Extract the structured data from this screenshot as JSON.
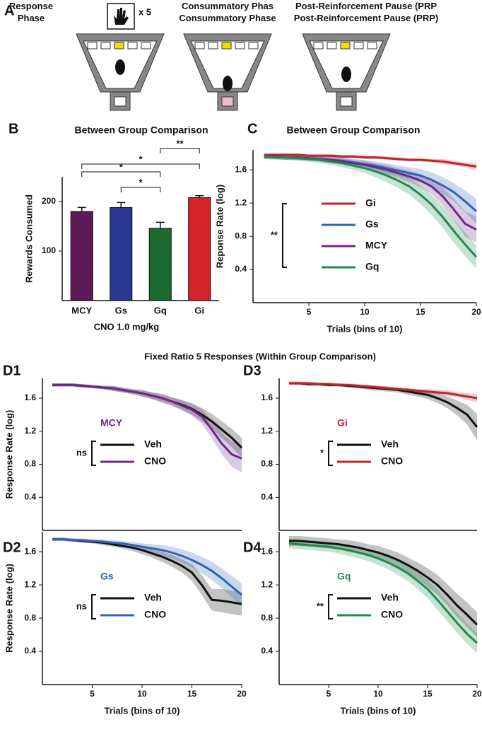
{
  "figure": {
    "panel_label": "A",
    "phases": [
      "Response Phase",
      "Consummatory Phase",
      "Post-Reinforcement Pause (PRP)"
    ],
    "response_count": "x 5",
    "section_title": "Fixed Ratio 5 Responses (Within Group Comparison)"
  },
  "chart_data": [
    {
      "type": "bar",
      "panel": "B",
      "title": "Between Group Comparison",
      "ylabel": "Rewards Consumed",
      "xlabel": "CNO 1.0 mg/kg",
      "categories": [
        "MCY",
        "Gs",
        "Gq",
        "Gi"
      ],
      "values": [
        180,
        188,
        146,
        208
      ],
      "errors": [
        8,
        10,
        12,
        4
      ],
      "colors": [
        "#5c1a5a",
        "#2a3590",
        "#1b6b30",
        "#d4242a"
      ],
      "ylim": [
        0,
        250
      ],
      "yticks": [
        100,
        200
      ],
      "significance": [
        {
          "label": "**",
          "between": [
            "Gq",
            "Gi"
          ]
        },
        {
          "label": "*",
          "between": [
            "MCY",
            "Gi"
          ]
        },
        {
          "label": "*",
          "between": [
            "MCY",
            "Gq"
          ]
        },
        {
          "label": "*",
          "between": [
            "Gs",
            "Gq"
          ]
        }
      ]
    },
    {
      "type": "line",
      "panel": "C",
      "title": "Between Group Comparison",
      "ylabel": "Reponse Rate (log)",
      "xlabel": "Trials (bins of 10)",
      "significance": "**",
      "x": [
        1,
        2,
        3,
        4,
        5,
        6,
        7,
        8,
        9,
        10,
        11,
        12,
        13,
        14,
        15,
        16,
        17,
        18,
        19,
        20
      ],
      "xlim": [
        0,
        20
      ],
      "xticks": [
        5,
        10,
        15,
        20
      ],
      "ylim": [
        0,
        1.84
      ],
      "yticks": [
        0.4,
        0.8,
        1.2,
        1.6
      ],
      "series": [
        {
          "name": "Gi",
          "color": "#c0242a",
          "values": [
            1.78,
            1.78,
            1.78,
            1.78,
            1.77,
            1.77,
            1.77,
            1.76,
            1.76,
            1.75,
            1.75,
            1.74,
            1.73,
            1.72,
            1.72,
            1.71,
            1.7,
            1.68,
            1.66,
            1.64
          ],
          "error": [
            0.02,
            0.02,
            0.02,
            0.02,
            0.02,
            0.02,
            0.02,
            0.02,
            0.02,
            0.02,
            0.02,
            0.02,
            0.02,
            0.02,
            0.02,
            0.02,
            0.03,
            0.03,
            0.03,
            0.04
          ]
        },
        {
          "name": "Gs",
          "color": "#2f64b4",
          "values": [
            1.76,
            1.76,
            1.75,
            1.75,
            1.74,
            1.73,
            1.72,
            1.71,
            1.69,
            1.67,
            1.65,
            1.62,
            1.59,
            1.56,
            1.53,
            1.48,
            1.41,
            1.33,
            1.22,
            1.1
          ],
          "error": [
            0.03,
            0.03,
            0.03,
            0.03,
            0.03,
            0.03,
            0.04,
            0.04,
            0.04,
            0.05,
            0.05,
            0.06,
            0.06,
            0.07,
            0.08,
            0.09,
            0.1,
            0.11,
            0.13,
            0.15
          ]
        },
        {
          "name": "MCY",
          "color": "#6a2a8a",
          "values": [
            1.76,
            1.76,
            1.75,
            1.75,
            1.74,
            1.73,
            1.72,
            1.7,
            1.68,
            1.66,
            1.63,
            1.6,
            1.56,
            1.52,
            1.47,
            1.4,
            1.28,
            1.12,
            0.95,
            0.88
          ],
          "error": [
            0.03,
            0.03,
            0.03,
            0.03,
            0.03,
            0.03,
            0.04,
            0.04,
            0.04,
            0.05,
            0.05,
            0.06,
            0.06,
            0.07,
            0.08,
            0.09,
            0.11,
            0.13,
            0.15,
            0.16
          ]
        },
        {
          "name": "Gq",
          "color": "#1f8a4c",
          "values": [
            1.76,
            1.75,
            1.75,
            1.74,
            1.73,
            1.72,
            1.7,
            1.68,
            1.65,
            1.62,
            1.58,
            1.53,
            1.47,
            1.4,
            1.3,
            1.18,
            1.03,
            0.86,
            0.7,
            0.55
          ],
          "error": [
            0.03,
            0.03,
            0.03,
            0.03,
            0.03,
            0.04,
            0.04,
            0.05,
            0.05,
            0.06,
            0.07,
            0.08,
            0.09,
            0.1,
            0.11,
            0.12,
            0.13,
            0.14,
            0.14,
            0.14
          ]
        }
      ]
    },
    {
      "type": "line",
      "panel": "D1",
      "ylabel": "Response Rate (log)",
      "legend_title": "MCY",
      "legend_color": "#6a2a8a",
      "significance": "ns",
      "x": [
        1,
        2,
        3,
        4,
        5,
        6,
        7,
        8,
        9,
        10,
        11,
        12,
        13,
        14,
        15,
        16,
        17,
        18,
        19,
        20
      ],
      "xlim": [
        0,
        20
      ],
      "ylim": [
        0,
        1.84
      ],
      "yticks": [
        0.4,
        0.8,
        1.2,
        1.6
      ],
      "series": [
        {
          "name": "Veh",
          "color": "#111111",
          "values": [
            1.76,
            1.76,
            1.76,
            1.75,
            1.74,
            1.73,
            1.72,
            1.7,
            1.68,
            1.66,
            1.63,
            1.6,
            1.56,
            1.52,
            1.47,
            1.4,
            1.32,
            1.22,
            1.12,
            1.0
          ],
          "error": [
            0.02,
            0.02,
            0.02,
            0.02,
            0.02,
            0.02,
            0.03,
            0.03,
            0.03,
            0.04,
            0.04,
            0.05,
            0.05,
            0.06,
            0.07,
            0.08,
            0.09,
            0.1,
            0.11,
            0.12
          ]
        },
        {
          "name": "CNO",
          "color": "#6a2a8a",
          "values": [
            1.76,
            1.76,
            1.76,
            1.75,
            1.74,
            1.73,
            1.72,
            1.7,
            1.68,
            1.66,
            1.63,
            1.6,
            1.56,
            1.51,
            1.46,
            1.38,
            1.22,
            1.05,
            0.92,
            0.87
          ],
          "error": [
            0.02,
            0.02,
            0.02,
            0.02,
            0.02,
            0.02,
            0.03,
            0.03,
            0.03,
            0.04,
            0.04,
            0.05,
            0.05,
            0.06,
            0.07,
            0.09,
            0.11,
            0.13,
            0.15,
            0.17
          ]
        }
      ]
    },
    {
      "type": "line",
      "panel": "D3",
      "legend_title": "Gi",
      "legend_color": "#c0242a",
      "significance": "*",
      "x": [
        1,
        2,
        3,
        4,
        5,
        6,
        7,
        8,
        9,
        10,
        11,
        12,
        13,
        14,
        15,
        16,
        17,
        18,
        19,
        20
      ],
      "xlim": [
        0,
        20
      ],
      "ylim": [
        0,
        1.84
      ],
      "yticks": [
        0.4,
        0.8,
        1.2,
        1.6
      ],
      "series": [
        {
          "name": "Veh",
          "color": "#111111",
          "values": [
            1.78,
            1.78,
            1.77,
            1.77,
            1.76,
            1.76,
            1.75,
            1.74,
            1.73,
            1.72,
            1.71,
            1.7,
            1.68,
            1.66,
            1.64,
            1.6,
            1.55,
            1.48,
            1.4,
            1.25
          ],
          "error": [
            0.02,
            0.02,
            0.02,
            0.02,
            0.02,
            0.02,
            0.02,
            0.02,
            0.03,
            0.03,
            0.03,
            0.03,
            0.04,
            0.04,
            0.05,
            0.06,
            0.07,
            0.09,
            0.12,
            0.16
          ]
        },
        {
          "name": "CNO",
          "color": "#c0242a",
          "values": [
            1.78,
            1.78,
            1.78,
            1.77,
            1.77,
            1.76,
            1.76,
            1.75,
            1.74,
            1.73,
            1.72,
            1.71,
            1.7,
            1.69,
            1.68,
            1.67,
            1.66,
            1.64,
            1.62,
            1.6
          ],
          "error": [
            0.02,
            0.02,
            0.02,
            0.02,
            0.02,
            0.02,
            0.02,
            0.02,
            0.02,
            0.02,
            0.02,
            0.02,
            0.02,
            0.02,
            0.03,
            0.03,
            0.03,
            0.03,
            0.04,
            0.05
          ]
        }
      ]
    },
    {
      "type": "line",
      "panel": "D2",
      "ylabel": "Response Rate (log)",
      "xlabel": "Trials (bins of 10)",
      "legend_title": "Gs",
      "legend_color": "#2f64b4",
      "significance": "ns",
      "x": [
        1,
        2,
        3,
        4,
        5,
        6,
        7,
        8,
        9,
        10,
        11,
        12,
        13,
        14,
        15,
        16,
        17,
        18,
        19,
        20
      ],
      "xlim": [
        0,
        20
      ],
      "xticks": [
        5,
        10,
        15,
        20
      ],
      "ylim": [
        0,
        1.84
      ],
      "yticks": [
        0.4,
        0.8,
        1.2,
        1.6
      ],
      "series": [
        {
          "name": "Veh",
          "color": "#111111",
          "values": [
            1.75,
            1.75,
            1.74,
            1.73,
            1.72,
            1.71,
            1.69,
            1.67,
            1.65,
            1.62,
            1.58,
            1.54,
            1.49,
            1.43,
            1.35,
            1.2,
            1.02,
            1.01,
            0.99,
            0.97
          ],
          "error": [
            0.02,
            0.02,
            0.02,
            0.02,
            0.02,
            0.03,
            0.03,
            0.03,
            0.04,
            0.05,
            0.05,
            0.06,
            0.07,
            0.08,
            0.1,
            0.12,
            0.13,
            0.14,
            0.14,
            0.14
          ]
        },
        {
          "name": "CNO",
          "color": "#2f64b4",
          "values": [
            1.75,
            1.75,
            1.74,
            1.74,
            1.73,
            1.72,
            1.71,
            1.7,
            1.68,
            1.66,
            1.64,
            1.62,
            1.59,
            1.55,
            1.5,
            1.44,
            1.37,
            1.28,
            1.18,
            1.08
          ],
          "error": [
            0.02,
            0.02,
            0.02,
            0.02,
            0.02,
            0.03,
            0.03,
            0.03,
            0.04,
            0.04,
            0.05,
            0.06,
            0.07,
            0.08,
            0.09,
            0.1,
            0.11,
            0.12,
            0.13,
            0.14
          ]
        }
      ]
    },
    {
      "type": "line",
      "panel": "D4",
      "xlabel": "Trials (bins of 10)",
      "legend_title": "Gq",
      "legend_color": "#1f8a4c",
      "significance": "**",
      "x": [
        1,
        2,
        3,
        4,
        5,
        6,
        7,
        8,
        9,
        10,
        11,
        12,
        13,
        14,
        15,
        16,
        17,
        18,
        19,
        20
      ],
      "xlim": [
        0,
        20
      ],
      "xticks": [
        5,
        10,
        15,
        20
      ],
      "ylim": [
        0,
        1.84
      ],
      "yticks": [
        0.4,
        0.8,
        1.2,
        1.6
      ],
      "series": [
        {
          "name": "Veh",
          "color": "#111111",
          "values": [
            1.73,
            1.73,
            1.72,
            1.71,
            1.7,
            1.69,
            1.67,
            1.65,
            1.62,
            1.59,
            1.55,
            1.5,
            1.44,
            1.37,
            1.29,
            1.2,
            1.08,
            0.95,
            0.84,
            0.72
          ],
          "error": [
            0.06,
            0.06,
            0.06,
            0.06,
            0.06,
            0.06,
            0.07,
            0.07,
            0.07,
            0.08,
            0.08,
            0.09,
            0.09,
            0.1,
            0.11,
            0.12,
            0.13,
            0.14,
            0.15,
            0.15
          ]
        },
        {
          "name": "CNO",
          "color": "#1f8a4c",
          "values": [
            1.7,
            1.69,
            1.68,
            1.67,
            1.66,
            1.64,
            1.62,
            1.59,
            1.56,
            1.52,
            1.47,
            1.41,
            1.34,
            1.25,
            1.15,
            1.02,
            0.88,
            0.74,
            0.61,
            0.5
          ],
          "error": [
            0.06,
            0.06,
            0.06,
            0.06,
            0.06,
            0.06,
            0.07,
            0.07,
            0.07,
            0.08,
            0.08,
            0.09,
            0.09,
            0.1,
            0.11,
            0.12,
            0.12,
            0.12,
            0.12,
            0.12
          ]
        }
      ]
    }
  ]
}
